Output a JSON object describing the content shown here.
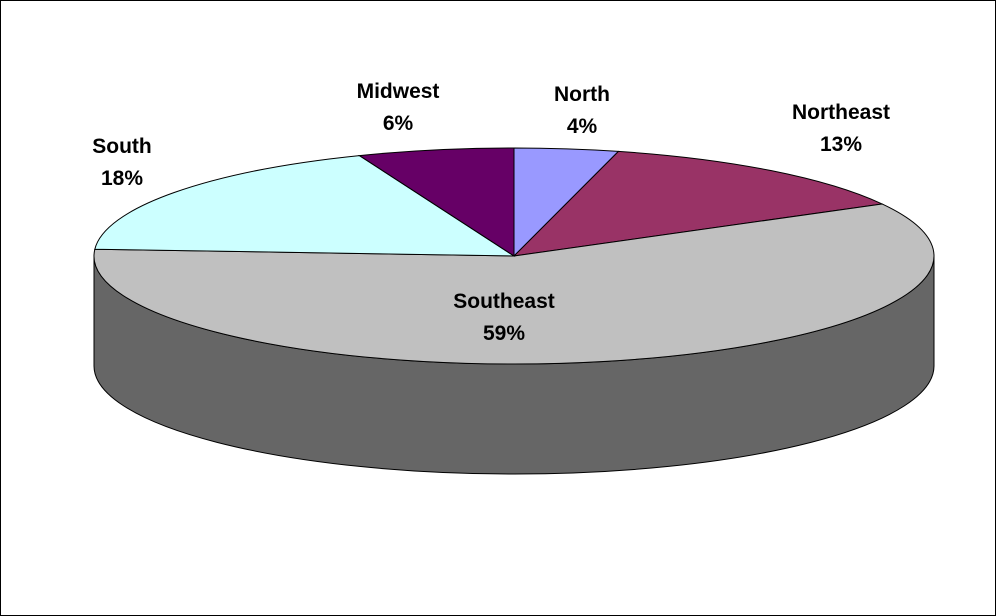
{
  "chart_data": {
    "type": "pie",
    "style": "3d-exploded-pie",
    "title": "",
    "legend": "none",
    "slices": [
      {
        "label": "North",
        "value": 4,
        "display": "4%",
        "color": "#9999ff"
      },
      {
        "label": "Northeast",
        "value": 13,
        "display": "13%",
        "color": "#993366"
      },
      {
        "label": "Southeast",
        "value": 59,
        "display": "59%",
        "color": "#c0c0c0",
        "side_color": "#666666"
      },
      {
        "label": "South",
        "value": 18,
        "display": "18%",
        "color": "#ccffff"
      },
      {
        "label": "Midwest",
        "value": 6,
        "display": "6%",
        "color": "#660066"
      }
    ]
  }
}
